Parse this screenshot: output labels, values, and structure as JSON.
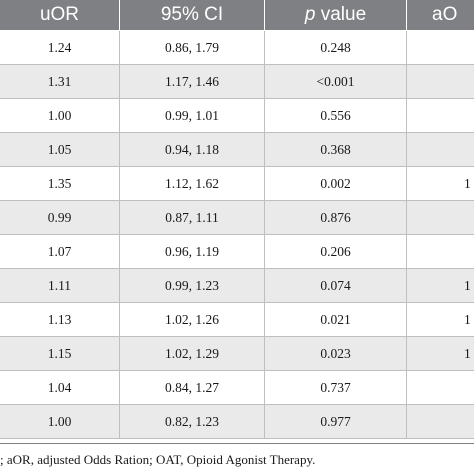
{
  "table": {
    "headers": [
      "uOR",
      "95% CI",
      "value",
      "aO"
    ],
    "header_p_italic": "p",
    "rows": [
      {
        "uor": "1.24",
        "ci": "0.86, 1.79",
        "p": "0.248",
        "aor": "",
        "shaded": false
      },
      {
        "uor": "1.31",
        "ci": "1.17, 1.46",
        "p": "<0.001",
        "aor": "",
        "shaded": true
      },
      {
        "uor": "1.00",
        "ci": "0.99, 1.01",
        "p": "0.556",
        "aor": "",
        "shaded": false
      },
      {
        "uor": "1.05",
        "ci": "0.94, 1.18",
        "p": "0.368",
        "aor": "",
        "shaded": true
      },
      {
        "uor": "1.35",
        "ci": "1.12, 1.62",
        "p": "0.002",
        "aor": "1",
        "shaded": false
      },
      {
        "uor": "0.99",
        "ci": "0.87, 1.11",
        "p": "0.876",
        "aor": "",
        "shaded": true
      },
      {
        "uor": "1.07",
        "ci": "0.96, 1.19",
        "p": "0.206",
        "aor": "",
        "shaded": false
      },
      {
        "uor": "1.11",
        "ci": "0.99, 1.23",
        "p": "0.074",
        "aor": "1",
        "shaded": true
      },
      {
        "uor": "1.13",
        "ci": "1.02, 1.26",
        "p": "0.021",
        "aor": "1",
        "shaded": false
      },
      {
        "uor": "1.15",
        "ci": "1.02, 1.29",
        "p": "0.023",
        "aor": "1",
        "shaded": true
      },
      {
        "uor": "1.04",
        "ci": "0.84, 1.27",
        "p": "0.737",
        "aor": "",
        "shaded": false
      },
      {
        "uor": "1.00",
        "ci": "0.82, 1.23",
        "p": "0.977",
        "aor": "",
        "shaded": true
      }
    ]
  },
  "footnote": "; aOR, adjusted Odds Ration; OAT, Opioid Agonist Therapy.",
  "colors": {
    "header_bg": "#7f8083",
    "row_shade": "#eaeaea",
    "rule": "#bfbfbf"
  }
}
